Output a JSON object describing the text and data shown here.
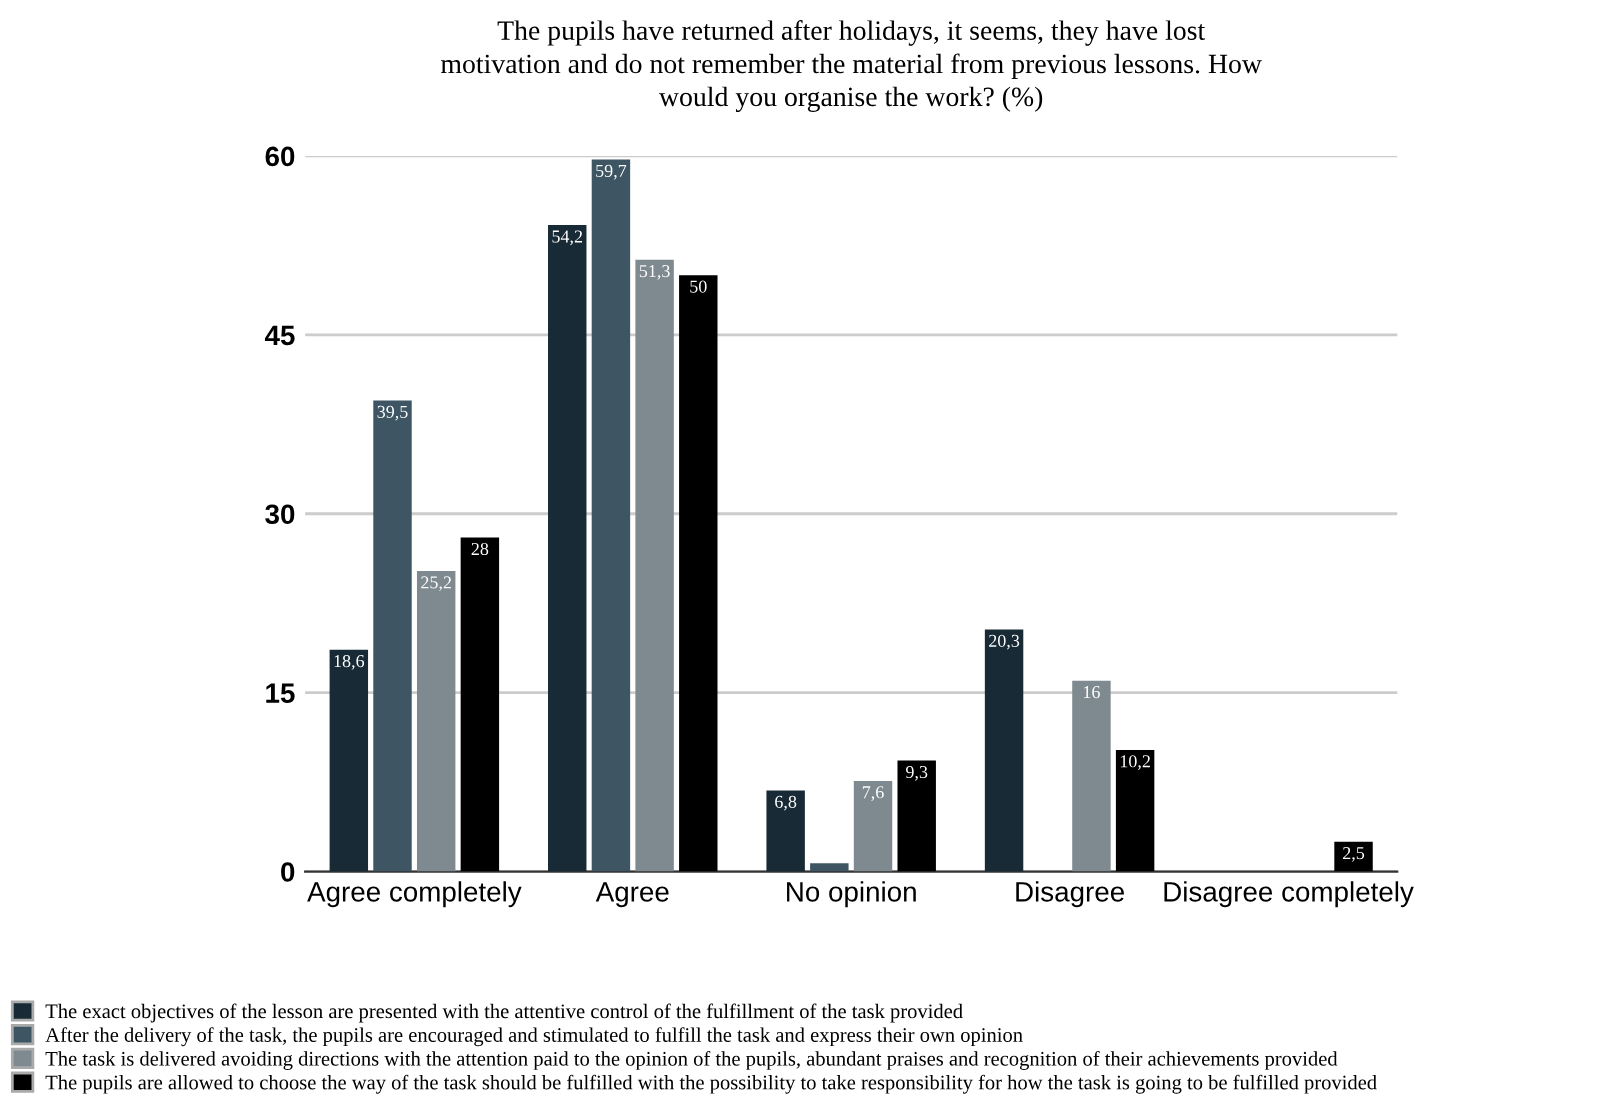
{
  "chart_data": {
    "type": "bar",
    "title": "The pupils have returned after holidays, it seems, they have lost\nmotivation and do not remember the material from previous lessons. How\nwould you organise the work? (%)",
    "categories": [
      "Agree completely",
      "Agree",
      "No opinion",
      "Disagree",
      "Disagree completely"
    ],
    "series": [
      {
        "name": "The exact objectives of the lesson are presented with the attentive control of the fulfillment of the task provided",
        "color": "#172a35",
        "values": [
          18.6,
          54.2,
          6.8,
          20.3,
          null
        ],
        "value_labels": [
          "18,6",
          "54,2",
          "6,8",
          "20,3",
          null
        ]
      },
      {
        "name": "After the delivery of the task, the pupils are encouraged and stimulated to fulfill the task and express their own opinion",
        "color": "#3e5663",
        "values": [
          39.5,
          59.7,
          0.7,
          null,
          null
        ],
        "value_labels": [
          "39,5",
          "59,7",
          null,
          null,
          null
        ]
      },
      {
        "name": "The task is delivered avoiding directions with the attention paid to the opinion of the pupils, abundant praises and recognition of their achievements provided",
        "color": "#7f8a90",
        "values": [
          25.2,
          51.3,
          7.6,
          16,
          null
        ],
        "value_labels": [
          "25,2",
          "51,3",
          "7,6",
          "16",
          null
        ]
      },
      {
        "name": "The pupils are allowed to choose the way of the task should be fulfilled with the possibility to take responsibility for how the task is going to be fulfilled provided",
        "color": "#000000",
        "values": [
          28,
          50,
          9.3,
          10.2,
          2.5
        ],
        "value_labels": [
          "28",
          "50",
          "9,3",
          "10,2",
          "2,5"
        ]
      }
    ],
    "ylim": [
      0,
      60
    ],
    "yticks": [
      0,
      15,
      30,
      45,
      60
    ],
    "grid": "y",
    "legend": "bottom"
  }
}
